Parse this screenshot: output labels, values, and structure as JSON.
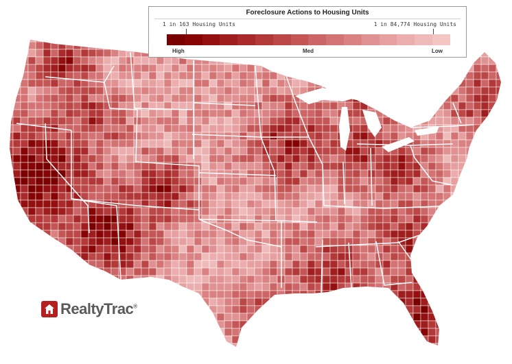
{
  "legend": {
    "title": "Foreclosure Actions to Housing Units",
    "min_label": "1 in 163 Housing Units",
    "max_label": "1 in 84,774 Housing Units",
    "high_label": "High",
    "med_label": "Med",
    "low_label": "Low",
    "scale_colors": [
      "#7a0000",
      "#870404",
      "#941010",
      "#9f1d1d",
      "#a92a2a",
      "#b33838",
      "#bc4747",
      "#c45656",
      "#cc6565",
      "#d37373",
      "#da8282",
      "#e09191",
      "#e6a0a0",
      "#ebadad",
      "#efbaba",
      "#f3c6c3"
    ]
  },
  "map": {
    "region": "Contiguous United States",
    "border_color": "#ffffff",
    "low_color": "#f3c6c3",
    "high_color": "#7a0000"
  },
  "logo": {
    "text": "RealtyTrac",
    "mark": "®",
    "icon": "house-icon",
    "color": "#b41f1f"
  }
}
